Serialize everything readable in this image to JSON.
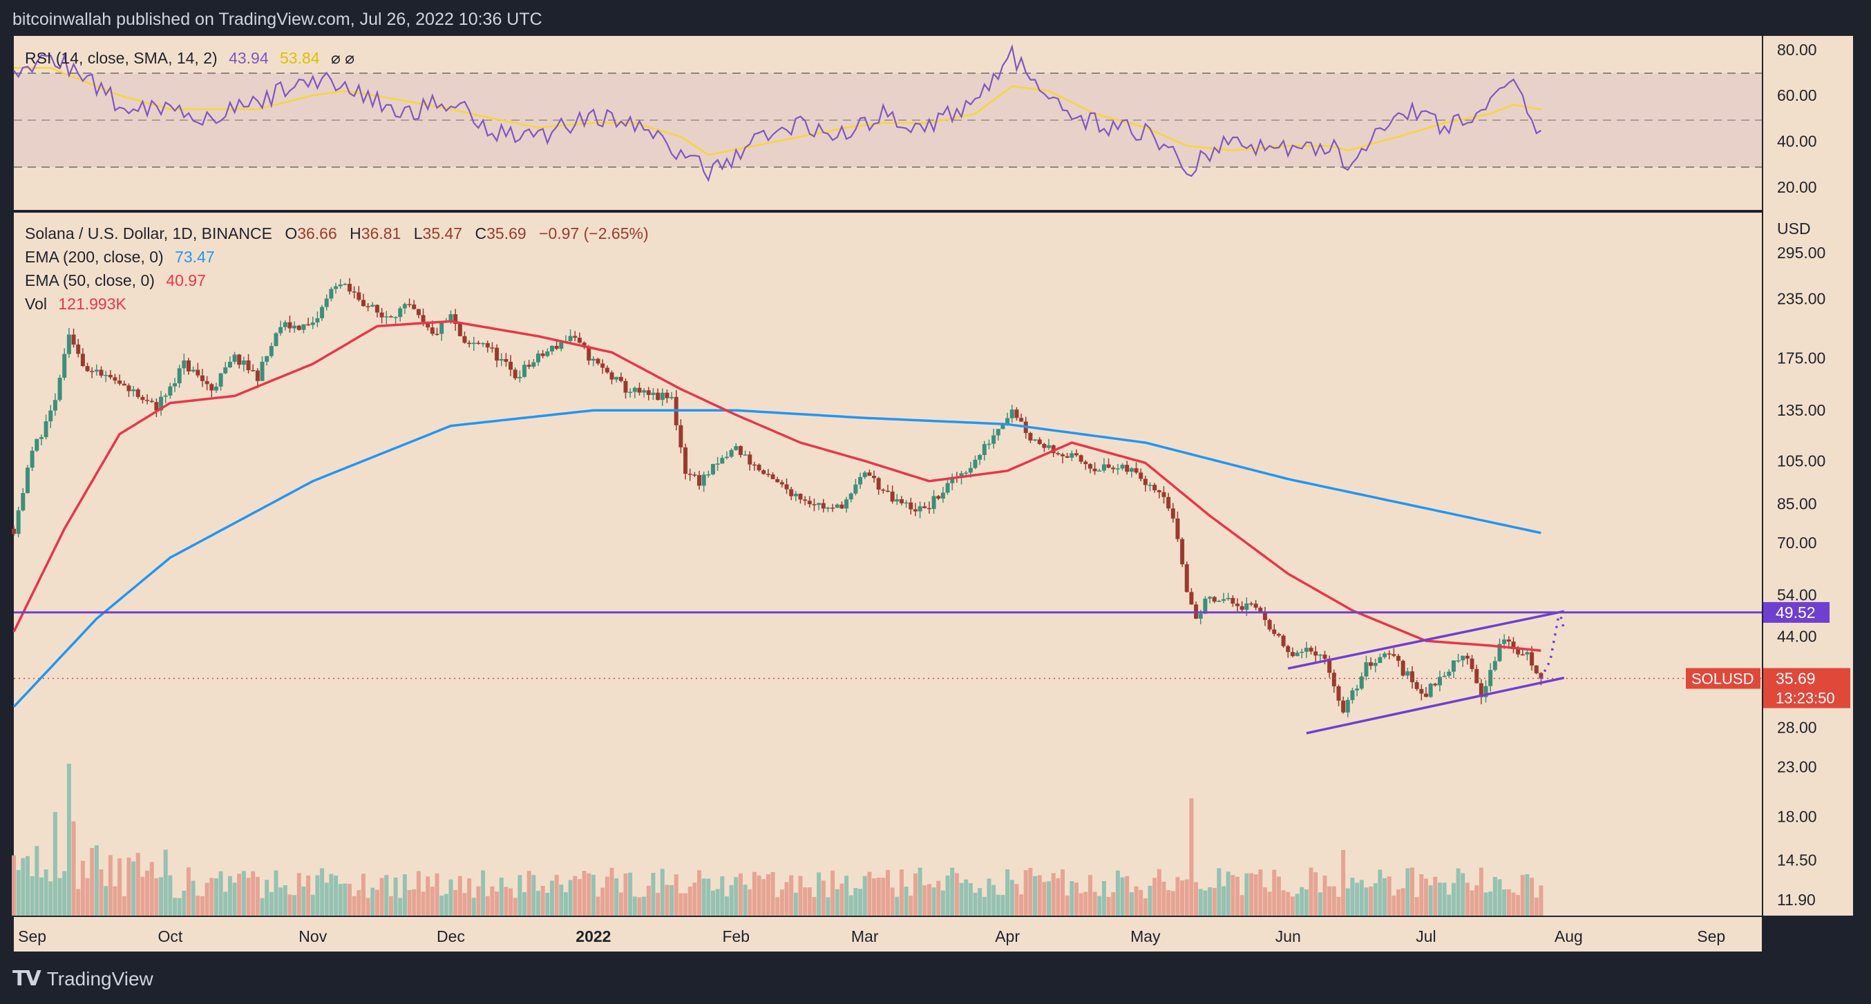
{
  "header": {
    "publisher": "bitcoinwallah published on TradingView.com, Jul 26, 2022 10:36 UTC"
  },
  "footer": {
    "brand": "TradingView"
  },
  "rsi_legend": {
    "name": "RSI (14, close, SMA, 14, 2)",
    "value": "43.94",
    "sma_value": "53.84",
    "icons": "⌀  ⌀"
  },
  "main_legend": {
    "symbol_line": "Solana / U.S. Dollar, 1D, BINANCE",
    "o_label": "O",
    "o": "36.66",
    "h_label": "H",
    "h": "36.81",
    "l_label": "L",
    "l": "35.47",
    "c_label": "C",
    "c": "35.69",
    "change": "−0.97 (−2.65%)",
    "ema200_name": "EMA (200, close, 0)",
    "ema200_value": "73.47",
    "ema50_name": "EMA (50, close, 0)",
    "ema50_value": "40.97",
    "vol_name": "Vol",
    "vol_value": "121.993K"
  },
  "price_tags": {
    "level_label": "49.52",
    "symbol_label": "SOLUSD",
    "last_price": "35.69",
    "countdown": "13:23:50"
  },
  "colors": {
    "background": "#f2dfcb",
    "up": "#3d8f7a",
    "down": "#9b3a2f",
    "ema200": "#2196f3",
    "ema50": "#e8364a",
    "rsi": "#7e57c2",
    "rsi_sma": "#f5d63c",
    "channel": "#6f3fd0",
    "last_price_tag": "#e0483a"
  },
  "chart_data": [
    {
      "type": "line",
      "title": "RSI (14, close, SMA, 14, 2)",
      "ylim": [
        10,
        86
      ],
      "y_ticks": [
        "80.00",
        "60.00",
        "40.00",
        "20.00"
      ],
      "bands": {
        "upper": 70,
        "middle": 50,
        "lower": 30
      },
      "x_dates": [
        "2021-08-28",
        "2021-09-05",
        "2021-09-10",
        "2021-09-20",
        "2021-10-01",
        "2021-10-10",
        "2021-10-20",
        "2021-11-01",
        "2021-11-08",
        "2021-11-20",
        "2021-12-01",
        "2021-12-10",
        "2021-12-20",
        "2022-01-01",
        "2022-01-10",
        "2022-01-20",
        "2022-01-26",
        "2022-02-05",
        "2022-02-15",
        "2022-02-25",
        "2022-03-05",
        "2022-03-15",
        "2022-03-25",
        "2022-04-02",
        "2022-04-10",
        "2022-04-20",
        "2022-05-01",
        "2022-05-10",
        "2022-05-20",
        "2022-06-01",
        "2022-06-10",
        "2022-06-14",
        "2022-06-25",
        "2022-07-05",
        "2022-07-15",
        "2022-07-20",
        "2022-07-26"
      ],
      "series": [
        {
          "name": "RSI",
          "values": [
            70,
            76,
            72,
            56,
            55,
            50,
            57,
            68,
            64,
            52,
            58,
            45,
            42,
            52,
            47,
            35,
            26,
            40,
            48,
            42,
            52,
            46,
            58,
            78,
            56,
            48,
            44,
            28,
            40,
            36,
            38,
            30,
            55,
            46,
            56,
            64,
            44
          ]
        },
        {
          "name": "SMA",
          "values": [
            72,
            72,
            68,
            60,
            54,
            54,
            54,
            60,
            62,
            58,
            54,
            50,
            46,
            48,
            48,
            42,
            34,
            38,
            42,
            46,
            48,
            48,
            52,
            64,
            62,
            52,
            46,
            38,
            36,
            38,
            38,
            36,
            42,
            48,
            52,
            56,
            53.84
          ]
        }
      ]
    },
    {
      "type": "candlestick",
      "title": "Solana / U.S. Dollar, 1D, BINANCE",
      "y_scale": "log",
      "ylim": [
        11,
        360
      ],
      "y_ticks": [
        "295.00",
        "235.00",
        "175.00",
        "135.00",
        "105.00",
        "85.00",
        "70.00",
        "54.00",
        "44.00",
        "28.00",
        "23.00",
        "18.00",
        "14.50",
        "11.90"
      ],
      "x_tick_labels": [
        "Sep",
        "Oct",
        "Nov",
        "Dec",
        "2022",
        "Feb",
        "Mar",
        "Apr",
        "May",
        "Jun",
        "Jul",
        "Aug",
        "Sep"
      ],
      "x_range": [
        "2021-08-28",
        "2022-09-12"
      ],
      "price_path": {
        "dates": [
          "2021-08-28",
          "2021-09-01",
          "2021-09-06",
          "2021-09-09",
          "2021-09-13",
          "2021-09-21",
          "2021-09-28",
          "2021-10-04",
          "2021-10-10",
          "2021-10-15",
          "2021-10-20",
          "2021-10-25",
          "2021-11-01",
          "2021-11-06",
          "2021-11-10",
          "2021-11-16",
          "2021-11-22",
          "2021-11-27",
          "2021-12-01",
          "2021-12-04",
          "2021-12-08",
          "2021-12-15",
          "2021-12-20",
          "2021-12-27",
          "2022-01-01",
          "2022-01-08",
          "2022-01-13",
          "2022-01-18",
          "2022-01-21",
          "2022-01-24",
          "2022-02-01",
          "2022-02-08",
          "2022-02-15",
          "2022-02-22",
          "2022-02-26",
          "2022-03-01",
          "2022-03-07",
          "2022-03-14",
          "2022-03-20",
          "2022-03-25",
          "2022-03-29",
          "2022-04-02",
          "2022-04-06",
          "2022-04-12",
          "2022-04-20",
          "2022-04-28",
          "2022-05-05",
          "2022-05-08",
          "2022-05-10",
          "2022-05-12",
          "2022-05-15",
          "2022-05-22",
          "2022-05-26",
          "2022-06-01",
          "2022-06-08",
          "2022-06-11",
          "2022-06-13",
          "2022-06-18",
          "2022-06-23",
          "2022-06-26",
          "2022-07-01",
          "2022-07-05",
          "2022-07-10",
          "2022-07-13",
          "2022-07-18",
          "2022-07-20",
          "2022-07-23",
          "2022-07-26"
        ],
        "closes": [
          75,
          110,
          140,
          195,
          165,
          150,
          137,
          170,
          150,
          175,
          160,
          205,
          205,
          255,
          240,
          215,
          225,
          195,
          215,
          185,
          190,
          160,
          175,
          195,
          172,
          150,
          145,
          143,
          100,
          95,
          112,
          96,
          88,
          82,
          88,
          100,
          86,
          82,
          95,
          105,
          120,
          137,
          118,
          110,
          102,
          100,
          90,
          72,
          55,
          48,
          54,
          51,
          50,
          40,
          41,
          35,
          30,
          38,
          41,
          37,
          33,
          37,
          40,
          33,
          44,
          41,
          40,
          35.69
        ]
      },
      "series": [
        {
          "name": "EMA (200, close, 0)",
          "x": [
            "2021-08-28",
            "2021-09-15",
            "2021-10-01",
            "2021-11-01",
            "2021-12-01",
            "2022-01-01",
            "2022-02-01",
            "2022-03-01",
            "2022-04-01",
            "2022-05-01",
            "2022-06-01",
            "2022-07-01",
            "2022-07-26"
          ],
          "values": [
            31,
            48,
            65,
            95,
            125,
            135,
            135,
            130,
            126,
            115,
            96,
            83,
            73.47
          ]
        },
        {
          "name": "EMA (50, close, 0)",
          "x": [
            "2021-08-28",
            "2021-09-08",
            "2021-09-20",
            "2021-10-01",
            "2021-10-15",
            "2021-11-01",
            "2021-11-15",
            "2021-12-01",
            "2021-12-20",
            "2022-01-05",
            "2022-01-20",
            "2022-02-01",
            "2022-02-15",
            "2022-03-01",
            "2022-03-15",
            "2022-04-01",
            "2022-04-15",
            "2022-05-01",
            "2022-05-15",
            "2022-06-01",
            "2022-06-15",
            "2022-07-01",
            "2022-07-15",
            "2022-07-26"
          ],
          "values": [
            45,
            75,
            120,
            140,
            145,
            170,
            205,
            210,
            195,
            180,
            150,
            132,
            115,
            105,
            95,
            100,
            115,
            104,
            80,
            60,
            50,
            43,
            42,
            40.97
          ]
        }
      ],
      "horizontal_level": 49.52,
      "last_price": 35.69,
      "annotations": [
        {
          "type": "rising-channel-upper",
          "from": [
            "2022-06-01",
            37.5
          ],
          "to": [
            "2022-07-31",
            49.8
          ]
        },
        {
          "type": "rising-channel-lower",
          "from": [
            "2022-06-05",
            27.2
          ],
          "to": [
            "2022-07-31",
            35.8
          ]
        },
        {
          "type": "dotted-projection",
          "points": [
            [
              "2022-07-26",
              35.7
            ],
            [
              "2022-07-28",
              39
            ],
            [
              "2022-07-29",
              44
            ],
            [
              "2022-07-30",
              49.8
            ],
            [
              "2022-07-31",
              45.5
            ]
          ]
        }
      ]
    },
    {
      "type": "bar",
      "title": "Vol",
      "last_value": "121.993K",
      "note": "daily volume bars, relative heights; tallest spikes around 2021-09-09 and 2022-05-11"
    }
  ]
}
